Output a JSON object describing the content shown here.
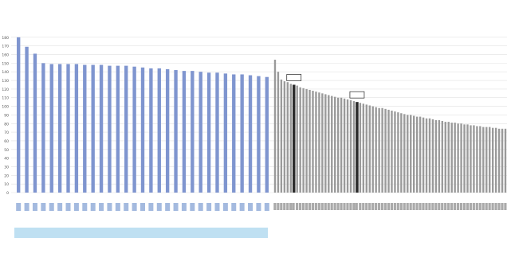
{
  "chart_data": {
    "type": "bar",
    "title": "",
    "xlabel": "",
    "ylabel": "",
    "ylim": [
      0,
      190
    ],
    "yticks": [
      0,
      10,
      20,
      30,
      40,
      50,
      60,
      70,
      80,
      90,
      100,
      110,
      120,
      130,
      140,
      150,
      160,
      170,
      180
    ],
    "grid": true,
    "colors": {
      "group_a": "#7f95cf",
      "group_b": "#9a9a9a",
      "highlight": "#2b2b2b",
      "band": "#bfe0f2"
    },
    "series": [
      {
        "name": "",
        "values": [
          180,
          169,
          161,
          150,
          149,
          149,
          149,
          149,
          148,
          148,
          148,
          147,
          147,
          147,
          146,
          145,
          144,
          144,
          143,
          142,
          141,
          141,
          140,
          139,
          139,
          138,
          137,
          137,
          136,
          135,
          134
        ]
      },
      {
        "name": "",
        "values": [
          154,
          140,
          131,
          129,
          128,
          126,
          125,
          124,
          122,
          121,
          120,
          119,
          118,
          117,
          116,
          115,
          114,
          113,
          112,
          111,
          110,
          110,
          109,
          108,
          107,
          106,
          105,
          104,
          103,
          102,
          101,
          100,
          99,
          98,
          98,
          97,
          96,
          95,
          94,
          93,
          92,
          91,
          90,
          90,
          89,
          88,
          88,
          87,
          86,
          86,
          85,
          84,
          84,
          83,
          82,
          82,
          81,
          81,
          80,
          80,
          79,
          79,
          78,
          78,
          77,
          77,
          76,
          76,
          76,
          75,
          75,
          74,
          74,
          74
        ],
        "highlight_indices": [
          6,
          26
        ],
        "highlight_labels": [
          "",
          ""
        ]
      }
    ],
    "band_label": ""
  },
  "footer": {
    "text": ""
  }
}
